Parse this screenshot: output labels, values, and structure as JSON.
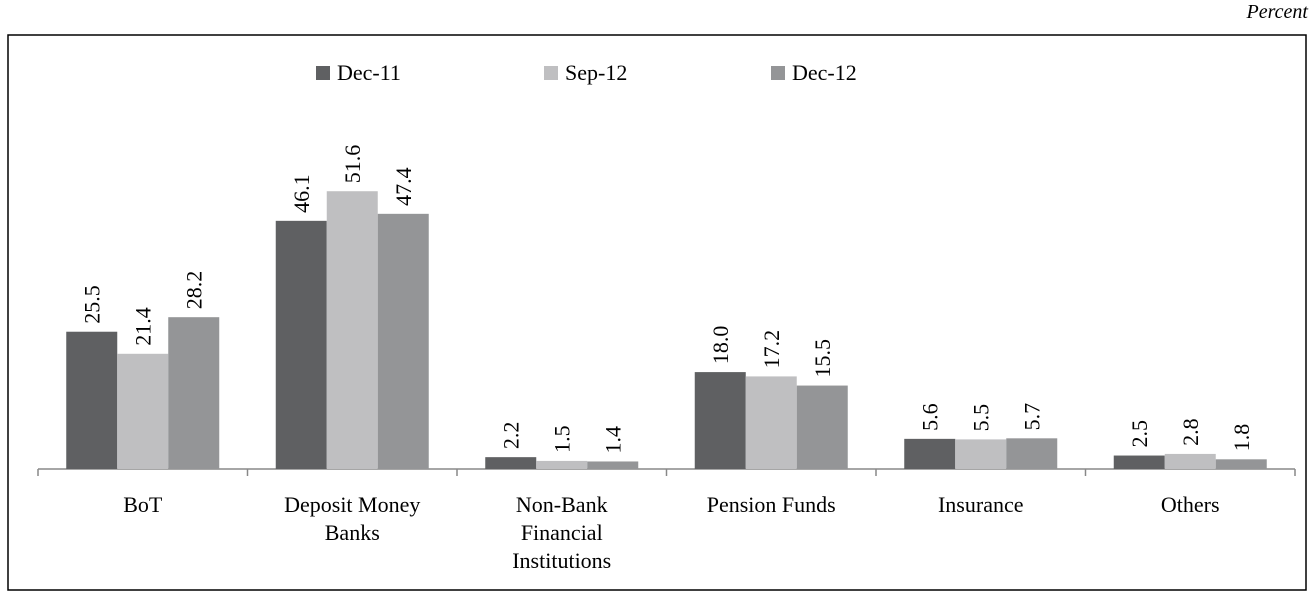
{
  "chart_data": {
    "type": "bar",
    "annotation": "Percent",
    "categories": [
      "BoT",
      "Deposit Money Banks",
      "Non-Bank Financial Institutions",
      "Pension Funds",
      "Insurance",
      "Others"
    ],
    "series": [
      {
        "name": "Dec-11",
        "color": "#5f6062",
        "values": [
          25.5,
          46.1,
          2.2,
          18.0,
          5.6,
          2.5
        ],
        "value_labels": [
          "25.5",
          "46.1",
          "2.2",
          "18.0",
          "5.6",
          "2.5"
        ]
      },
      {
        "name": "Sep-12",
        "color": "#bfbfc1",
        "values": [
          21.4,
          51.6,
          1.5,
          17.2,
          5.5,
          2.8
        ],
        "value_labels": [
          "21.4",
          "51.6",
          "1.5",
          "17.2",
          "5.5",
          "2.8"
        ]
      },
      {
        "name": "Dec-12",
        "color": "#949597",
        "values": [
          28.2,
          47.4,
          1.4,
          15.5,
          5.7,
          1.8
        ],
        "value_labels": [
          "28.2",
          "47.4",
          "1.4",
          "15.5",
          "5.7",
          "1.8"
        ]
      }
    ],
    "ylim": [
      0,
      60
    ],
    "legend": "top"
  }
}
